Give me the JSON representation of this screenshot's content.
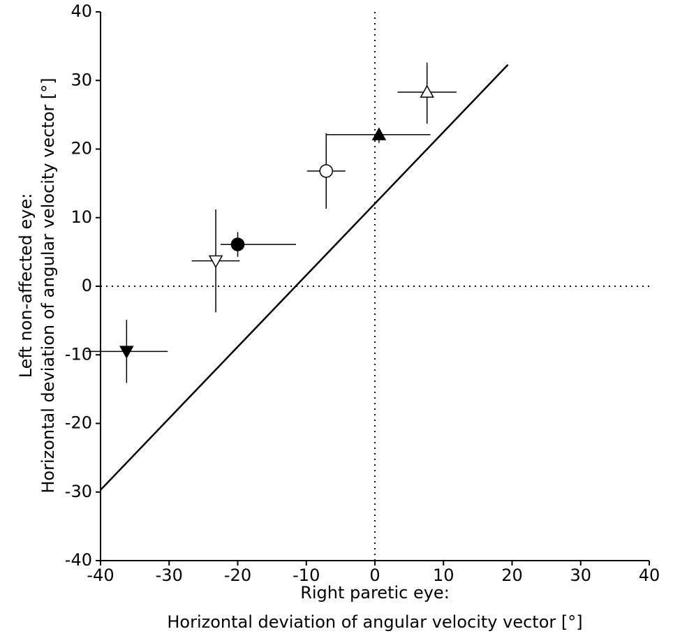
{
  "chart_data": {
    "type": "scatter",
    "xlabel": [
      "Right paretic eye:",
      "Horizontal deviation of angular velocity vector [°]"
    ],
    "ylabel": [
      "Left non-affected eye:",
      "Horizontal deviation of angular velocity vector [°]"
    ],
    "xlim": [
      -40,
      40
    ],
    "ylim": [
      -40,
      40
    ],
    "xticks": [
      -40,
      -30,
      -20,
      -10,
      0,
      10,
      20,
      30,
      40
    ],
    "yticks": [
      -40,
      -30,
      -20,
      -10,
      0,
      10,
      20,
      30,
      40
    ],
    "color": "#000000",
    "zero_lines": true,
    "points": [
      {
        "x": -36.2,
        "y": -9.5,
        "xerr_minus": 6,
        "xerr_plus": 6,
        "yerr_minus": 4.6,
        "yerr_plus": 4.6,
        "marker": "triangle-down",
        "filled": true
      },
      {
        "x": -23.2,
        "y": 3.7,
        "xerr_minus": 3.5,
        "xerr_plus": 3.5,
        "yerr_minus": 7.5,
        "yerr_plus": 7.5,
        "marker": "triangle-down",
        "filled": false
      },
      {
        "x": -20,
        "y": 6.1,
        "xerr_minus": 2.5,
        "xerr_plus": 8.5,
        "yerr_minus": 1.8,
        "yerr_plus": 1.8,
        "marker": "circle",
        "filled": true
      },
      {
        "x": -7.1,
        "y": 16.8,
        "xerr_minus": 2.8,
        "xerr_plus": 2.8,
        "yerr_minus": 5.5,
        "yerr_plus": 5.5,
        "marker": "circle",
        "filled": false
      },
      {
        "x": 0.6,
        "y": 22.1,
        "xerr_minus": 7.7,
        "xerr_plus": 7.5,
        "yerr_minus": 1.2,
        "yerr_plus": 0.2,
        "marker": "triangle-up",
        "filled": true
      },
      {
        "x": 7.6,
        "y": 28.3,
        "xerr_minus": 4.3,
        "xerr_plus": 4.3,
        "yerr_minus": 4.6,
        "yerr_plus": 4.3,
        "marker": "triangle-up",
        "filled": false
      }
    ],
    "fit_line": {
      "x": [
        -40,
        19.4
      ],
      "y": [
        -29.7,
        32.3
      ]
    }
  }
}
